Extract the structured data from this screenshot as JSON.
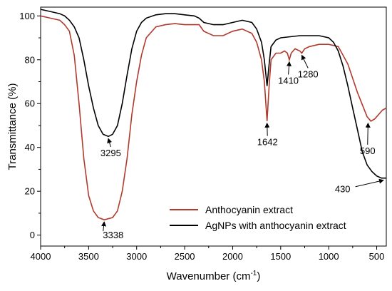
{
  "chart_data": {
    "type": "line",
    "xlabel": "Wavenumber (cm",
    "xlabel_sup": "-1",
    "xlabel_end": ")",
    "ylabel": "Transmittance (%)",
    "xlim": [
      4000,
      400
    ],
    "ylim": [
      -5,
      104
    ],
    "x_ticks": [
      4000,
      3500,
      3000,
      2500,
      2000,
      1500,
      1000,
      500
    ],
    "y_ticks": [
      0,
      20,
      40,
      60,
      80,
      100
    ],
    "grid": false,
    "legend_position": "bottom-right",
    "series": [
      {
        "name": "Anthocyanin extract",
        "color": "#b03a2e",
        "points": [
          [
            4000,
            100
          ],
          [
            3900,
            99
          ],
          [
            3800,
            98
          ],
          [
            3750,
            96
          ],
          [
            3700,
            93
          ],
          [
            3650,
            82
          ],
          [
            3600,
            60
          ],
          [
            3550,
            35
          ],
          [
            3500,
            18
          ],
          [
            3450,
            11
          ],
          [
            3400,
            8
          ],
          [
            3338,
            7
          ],
          [
            3250,
            8
          ],
          [
            3200,
            11
          ],
          [
            3150,
            20
          ],
          [
            3100,
            35
          ],
          [
            3050,
            55
          ],
          [
            3000,
            70
          ],
          [
            2950,
            82
          ],
          [
            2900,
            90
          ],
          [
            2800,
            95
          ],
          [
            2700,
            96
          ],
          [
            2600,
            96.5
          ],
          [
            2500,
            96
          ],
          [
            2400,
            96
          ],
          [
            2350,
            96
          ],
          [
            2300,
            93
          ],
          [
            2200,
            91
          ],
          [
            2100,
            91
          ],
          [
            2000,
            93
          ],
          [
            1900,
            94
          ],
          [
            1800,
            92
          ],
          [
            1750,
            88
          ],
          [
            1700,
            80
          ],
          [
            1670,
            70
          ],
          [
            1642,
            52
          ],
          [
            1620,
            68
          ],
          [
            1600,
            80
          ],
          [
            1550,
            83
          ],
          [
            1500,
            83
          ],
          [
            1460,
            84
          ],
          [
            1430,
            83
          ],
          [
            1410,
            80
          ],
          [
            1390,
            83
          ],
          [
            1350,
            85
          ],
          [
            1300,
            84
          ],
          [
            1280,
            83
          ],
          [
            1250,
            85
          ],
          [
            1200,
            86
          ],
          [
            1100,
            87
          ],
          [
            1000,
            87
          ],
          [
            900,
            86
          ],
          [
            800,
            78
          ],
          [
            700,
            65
          ],
          [
            600,
            54
          ],
          [
            560,
            52
          ],
          [
            520,
            53
          ],
          [
            480,
            55
          ],
          [
            440,
            57
          ],
          [
            400,
            58
          ]
        ]
      },
      {
        "name": "AgNPs with anthocyanin extract",
        "color": "#000000",
        "points": [
          [
            4000,
            103
          ],
          [
            3900,
            102
          ],
          [
            3800,
            101
          ],
          [
            3750,
            100
          ],
          [
            3700,
            98
          ],
          [
            3650,
            95
          ],
          [
            3600,
            90
          ],
          [
            3550,
            80
          ],
          [
            3500,
            68
          ],
          [
            3450,
            58
          ],
          [
            3400,
            50
          ],
          [
            3350,
            46
          ],
          [
            3295,
            45
          ],
          [
            3250,
            46
          ],
          [
            3200,
            50
          ],
          [
            3150,
            60
          ],
          [
            3100,
            73
          ],
          [
            3050,
            85
          ],
          [
            3000,
            93
          ],
          [
            2950,
            97
          ],
          [
            2900,
            99
          ],
          [
            2800,
            100.5
          ],
          [
            2700,
            101
          ],
          [
            2600,
            101
          ],
          [
            2500,
            100.5
          ],
          [
            2400,
            100
          ],
          [
            2350,
            99
          ],
          [
            2300,
            97
          ],
          [
            2200,
            96
          ],
          [
            2100,
            96
          ],
          [
            2000,
            97
          ],
          [
            1900,
            98
          ],
          [
            1800,
            97
          ],
          [
            1750,
            94
          ],
          [
            1700,
            88
          ],
          [
            1670,
            80
          ],
          [
            1642,
            68
          ],
          [
            1620,
            78
          ],
          [
            1600,
            86
          ],
          [
            1550,
            89
          ],
          [
            1500,
            90
          ],
          [
            1400,
            90.5
          ],
          [
            1300,
            91
          ],
          [
            1200,
            91
          ],
          [
            1100,
            91
          ],
          [
            1000,
            90
          ],
          [
            950,
            88
          ],
          [
            900,
            84
          ],
          [
            850,
            77
          ],
          [
            800,
            68
          ],
          [
            750,
            58
          ],
          [
            700,
            48
          ],
          [
            650,
            38
          ],
          [
            600,
            32
          ],
          [
            550,
            29
          ],
          [
            500,
            27
          ],
          [
            450,
            26
          ],
          [
            400,
            26
          ]
        ]
      }
    ],
    "annotations": [
      {
        "text": "3295",
        "x": 3295,
        "y": 45,
        "label_x": 3270,
        "label_y": 36,
        "anchor": "middle"
      },
      {
        "text": "3338",
        "x": 3338,
        "y": 7,
        "label_x": 3245,
        "label_y": -1.5,
        "anchor": "middle"
      },
      {
        "text": "1642",
        "x": 1642,
        "y": 52,
        "label_x": 1638,
        "label_y": 41,
        "anchor": "middle"
      },
      {
        "text": "1410",
        "x": 1410,
        "y": 80,
        "label_x": 1420,
        "label_y": 69,
        "anchor": "middle"
      },
      {
        "text": "1280",
        "x": 1280,
        "y": 83,
        "label_x": 1215,
        "label_y": 72,
        "anchor": "middle"
      },
      {
        "text": "590",
        "x": 590,
        "y": 52,
        "label_x": 595,
        "label_y": 37,
        "anchor": "middle"
      },
      {
        "text": "430",
        "x": 430,
        "y": 26,
        "label_x": 855,
        "label_y": 19.5,
        "anchor": "middle"
      }
    ]
  }
}
